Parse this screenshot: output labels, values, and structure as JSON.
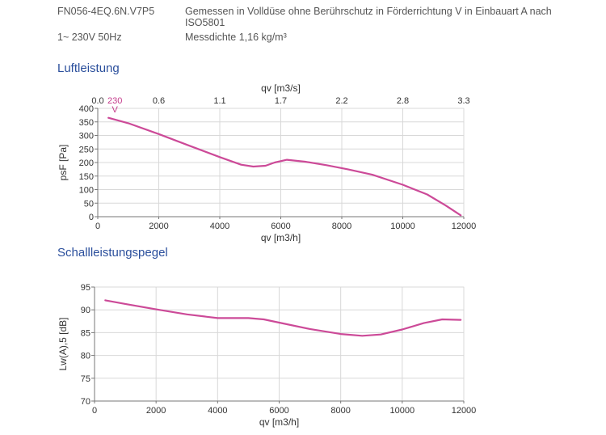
{
  "header": {
    "model": "FN056-4EQ.6N.V7P5",
    "description_line1": "Gemessen in Volldüse ohne Berührschutz in Förderrichtung V in Einbauart A nach",
    "description_line2": "ISO5801",
    "supply": "1~ 230V 50Hz",
    "density": "Messdichte 1,16 kg/m³"
  },
  "sections": {
    "air_title": "Luftleistung",
    "sound_title": "Schallleistungspegel"
  },
  "colors": {
    "curve": "#cc4a98",
    "grid": "#d8d8d8",
    "title": "#2b4f9c"
  },
  "chart_data": [
    {
      "type": "line",
      "title": "Luftleistung",
      "xlabel": "qv [m3/h]",
      "ylabel": "psF [Pa]",
      "x2label": "qv [m3/s]",
      "xlim": [
        0,
        12000
      ],
      "ylim": [
        0,
        400
      ],
      "xticks": [
        0,
        2000,
        4000,
        6000,
        8000,
        10000,
        12000
      ],
      "yticks": [
        0,
        50,
        100,
        150,
        200,
        250,
        300,
        350,
        400
      ],
      "x2ticks": [
        "0.0",
        "0.6",
        "1.1",
        "1.7",
        "2.2",
        "2.8",
        "3.3"
      ],
      "grid": true,
      "curve_labels": [
        "230",
        "V"
      ],
      "series": [
        {
          "x": [
            350,
            1000,
            2000,
            3000,
            4000,
            4700,
            5100,
            5500,
            5800,
            6200,
            6800,
            7500,
            8200,
            9000,
            10000,
            10800,
            11400,
            11900
          ],
          "y": [
            365,
            345,
            305,
            262,
            220,
            192,
            185,
            188,
            200,
            210,
            203,
            190,
            175,
            155,
            118,
            82,
            42,
            5
          ]
        }
      ]
    },
    {
      "type": "line",
      "title": "Schallleistungspegel",
      "xlabel": "qv [m3/h]",
      "ylabel": "Lw(A),5 [dB]",
      "xlim": [
        0,
        12000
      ],
      "ylim": [
        70,
        95
      ],
      "xticks": [
        0,
        2000,
        4000,
        6000,
        8000,
        10000,
        12000
      ],
      "yticks": [
        70,
        75,
        80,
        85,
        90,
        95
      ],
      "grid": true,
      "series": [
        {
          "x": [
            350,
            1000,
            2000,
            3000,
            4000,
            5000,
            5500,
            6000,
            7000,
            8000,
            8700,
            9300,
            10000,
            10700,
            11300,
            11900
          ],
          "y": [
            92.1,
            91.3,
            90.1,
            89.0,
            88.2,
            88.2,
            87.9,
            87.2,
            85.8,
            84.7,
            84.3,
            84.6,
            85.7,
            87.1,
            87.9,
            87.8
          ]
        }
      ]
    }
  ]
}
